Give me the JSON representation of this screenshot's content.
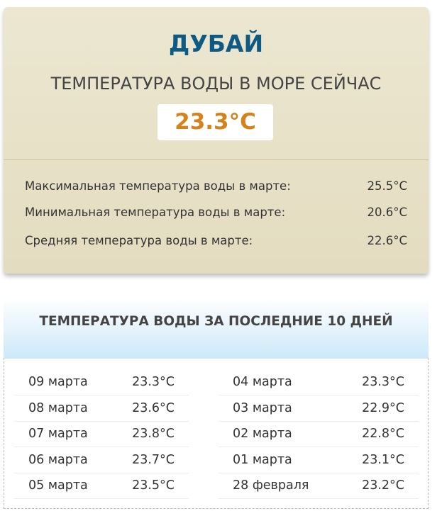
{
  "current": {
    "city": "ДУБАЙ",
    "subtitle": "ТЕМПЕРАТУРА ВОДЫ В МОРЕ СЕЙЧАС",
    "value": "23.3°C",
    "stats": [
      {
        "label": "Максимальная температура воды в марте:",
        "value": "25.5°C"
      },
      {
        "label": "Минимальная температура воды в марте:",
        "value": "20.6°C"
      },
      {
        "label": "Средняя температура воды в марте:",
        "value": "22.6°C"
      }
    ]
  },
  "history": {
    "title": "ТЕМПЕРАТУРА ВОДЫ ЗА ПОСЛЕДНИЕ 10 ДНЕЙ",
    "left": [
      {
        "date": "09 марта",
        "temp": "23.3°C"
      },
      {
        "date": "08 марта",
        "temp": "23.6°C"
      },
      {
        "date": "07 марта",
        "temp": "23.8°C"
      },
      {
        "date": "06 марта",
        "temp": "23.7°C"
      },
      {
        "date": "05 марта",
        "temp": "23.5°C"
      }
    ],
    "right": [
      {
        "date": "04 марта",
        "temp": "23.3°C"
      },
      {
        "date": "03 марта",
        "temp": "22.9°C"
      },
      {
        "date": "02 марта",
        "temp": "22.8°C"
      },
      {
        "date": "01 марта",
        "temp": "23.1°C"
      },
      {
        "date": "28 февраля",
        "temp": "23.2°C"
      }
    ]
  },
  "colors": {
    "city": "#0f5a83",
    "value": "#d4821a"
  }
}
